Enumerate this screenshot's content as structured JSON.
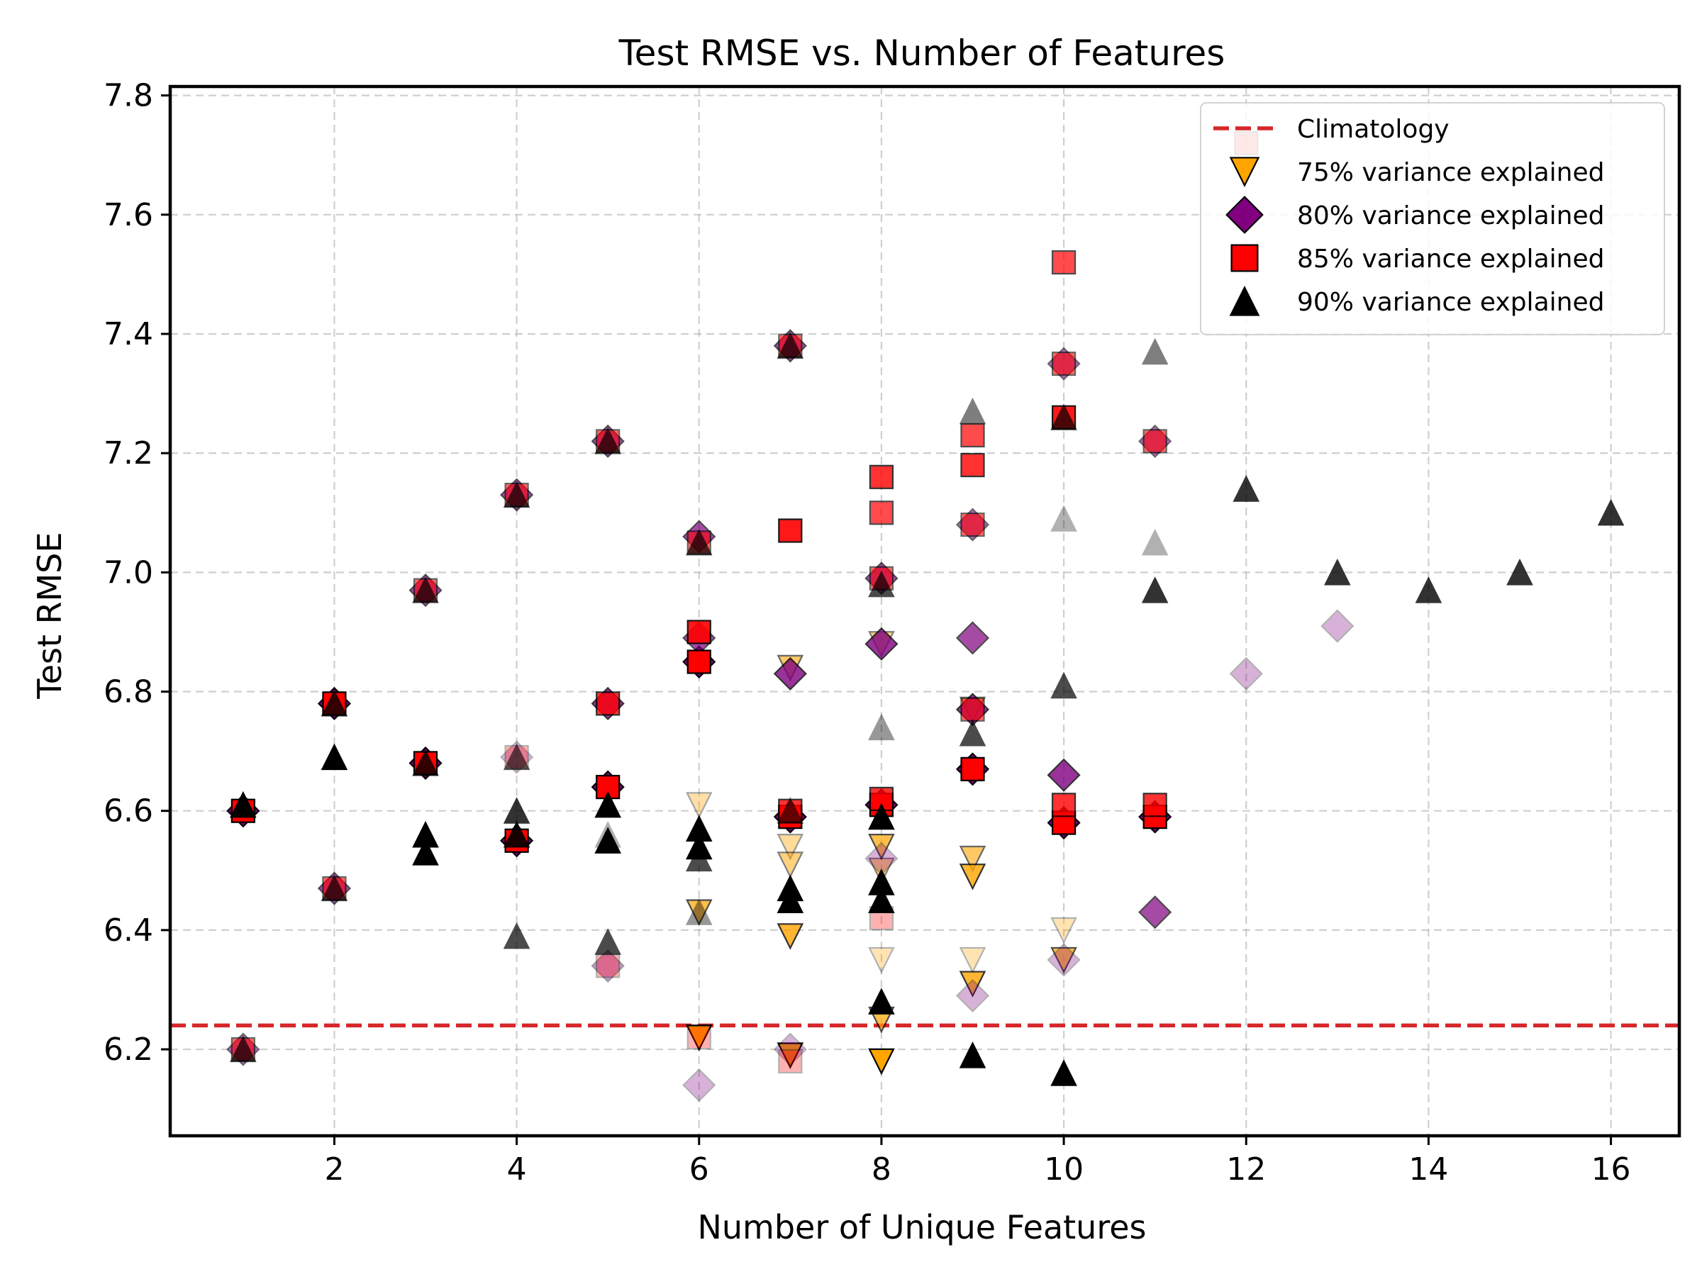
{
  "chart_data": {
    "type": "scatter",
    "title": "Test RMSE vs. Number of Features",
    "xlabel": "Number of Unique Features",
    "ylabel": "Test RMSE",
    "xlim": [
      0.2,
      16.75
    ],
    "ylim": [
      6.055,
      7.815
    ],
    "x_ticks": [
      2,
      4,
      6,
      8,
      10,
      12,
      14,
      16
    ],
    "y_ticks": [
      6.2,
      6.4,
      6.6,
      6.8,
      7.0,
      7.2,
      7.4,
      7.6,
      7.8
    ],
    "x_tick_labels": [
      "2",
      "4",
      "6",
      "8",
      "10",
      "12",
      "14",
      "16"
    ],
    "y_tick_labels": [
      "6.2",
      "6.4",
      "6.6",
      "6.8",
      "7.0",
      "7.2",
      "7.4",
      "7.6",
      "7.8"
    ],
    "grid": true,
    "legend_position": "top-right",
    "reference_line": {
      "name": "Climatology",
      "y": 6.24,
      "color": "#d62728",
      "style": "dashed"
    },
    "series": [
      {
        "name": "75% variance explained",
        "marker": "triangle-down",
        "color": "#ffa500",
        "points": [
          {
            "x": 6,
            "y": 6.61,
            "a": 0.35
          },
          {
            "x": 6,
            "y": 6.43,
            "a": 0.7
          },
          {
            "x": 6,
            "y": 6.22,
            "a": 1.0
          },
          {
            "x": 7,
            "y": 6.54,
            "a": 0.4
          },
          {
            "x": 7,
            "y": 6.51,
            "a": 0.5
          },
          {
            "x": 7,
            "y": 6.39,
            "a": 0.8
          },
          {
            "x": 7,
            "y": 6.19,
            "a": 1.0
          },
          {
            "x": 7,
            "y": 6.84,
            "a": 0.6
          },
          {
            "x": 8,
            "y": 6.54,
            "a": 0.7
          },
          {
            "x": 8,
            "y": 6.5,
            "a": 0.5
          },
          {
            "x": 8,
            "y": 6.35,
            "a": 0.3
          },
          {
            "x": 8,
            "y": 6.25,
            "a": 0.7
          },
          {
            "x": 8,
            "y": 6.18,
            "a": 1.0
          },
          {
            "x": 8,
            "y": 6.88,
            "a": 0.5
          },
          {
            "x": 9,
            "y": 6.52,
            "a": 0.6
          },
          {
            "x": 9,
            "y": 6.49,
            "a": 0.8
          },
          {
            "x": 9,
            "y": 6.35,
            "a": 0.3
          },
          {
            "x": 9,
            "y": 6.31,
            "a": 0.8
          },
          {
            "x": 9,
            "y": 6.77,
            "a": 0.5
          },
          {
            "x": 10,
            "y": 6.4,
            "a": 0.3
          },
          {
            "x": 10,
            "y": 6.35,
            "a": 0.7
          }
        ]
      },
      {
        "name": "80% variance explained",
        "marker": "diamond",
        "color": "#800080",
        "points": [
          {
            "x": 1,
            "y": 6.6,
            "a": 1.0
          },
          {
            "x": 1,
            "y": 6.2,
            "a": 0.6
          },
          {
            "x": 2,
            "y": 6.78,
            "a": 1.0
          },
          {
            "x": 2,
            "y": 6.47,
            "a": 0.7
          },
          {
            "x": 3,
            "y": 6.68,
            "a": 1.0
          },
          {
            "x": 3,
            "y": 6.97,
            "a": 0.7
          },
          {
            "x": 4,
            "y": 6.55,
            "a": 1.0
          },
          {
            "x": 4,
            "y": 7.13,
            "a": 0.7
          },
          {
            "x": 4,
            "y": 6.69,
            "a": 0.3
          },
          {
            "x": 5,
            "y": 6.64,
            "a": 1.0
          },
          {
            "x": 5,
            "y": 6.78,
            "a": 0.8
          },
          {
            "x": 5,
            "y": 7.22,
            "a": 0.7
          },
          {
            "x": 5,
            "y": 6.34,
            "a": 0.4
          },
          {
            "x": 6,
            "y": 6.85,
            "a": 1.0
          },
          {
            "x": 6,
            "y": 6.89,
            "a": 0.7
          },
          {
            "x": 6,
            "y": 7.06,
            "a": 0.7
          },
          {
            "x": 6,
            "y": 6.14,
            "a": 0.3
          },
          {
            "x": 7,
            "y": 6.59,
            "a": 1.0
          },
          {
            "x": 7,
            "y": 6.83,
            "a": 0.8
          },
          {
            "x": 7,
            "y": 7.38,
            "a": 0.7
          },
          {
            "x": 7,
            "y": 6.2,
            "a": 0.3
          },
          {
            "x": 8,
            "y": 6.61,
            "a": 1.0
          },
          {
            "x": 8,
            "y": 6.88,
            "a": 0.8
          },
          {
            "x": 8,
            "y": 6.99,
            "a": 0.7
          },
          {
            "x": 8,
            "y": 6.52,
            "a": 0.3
          },
          {
            "x": 9,
            "y": 6.67,
            "a": 1.0
          },
          {
            "x": 9,
            "y": 6.77,
            "a": 0.8
          },
          {
            "x": 9,
            "y": 6.89,
            "a": 0.7
          },
          {
            "x": 9,
            "y": 7.08,
            "a": 0.6
          },
          {
            "x": 9,
            "y": 6.29,
            "a": 0.3
          },
          {
            "x": 10,
            "y": 6.58,
            "a": 1.0
          },
          {
            "x": 10,
            "y": 6.66,
            "a": 0.8
          },
          {
            "x": 10,
            "y": 7.35,
            "a": 0.6
          },
          {
            "x": 10,
            "y": 6.35,
            "a": 0.3
          },
          {
            "x": 11,
            "y": 6.59,
            "a": 1.0
          },
          {
            "x": 11,
            "y": 6.43,
            "a": 0.7
          },
          {
            "x": 11,
            "y": 7.22,
            "a": 0.6
          },
          {
            "x": 12,
            "y": 6.83,
            "a": 0.3
          },
          {
            "x": 13,
            "y": 6.91,
            "a": 0.3
          }
        ]
      },
      {
        "name": "85% variance explained",
        "marker": "square",
        "color": "#ff0000",
        "points": [
          {
            "x": 1,
            "y": 6.6,
            "a": 1.0
          },
          {
            "x": 1,
            "y": 6.2,
            "a": 0.6
          },
          {
            "x": 2,
            "y": 6.78,
            "a": 1.0
          },
          {
            "x": 2,
            "y": 6.47,
            "a": 0.6
          },
          {
            "x": 3,
            "y": 6.68,
            "a": 1.0
          },
          {
            "x": 3,
            "y": 6.97,
            "a": 0.6
          },
          {
            "x": 4,
            "y": 6.55,
            "a": 1.0
          },
          {
            "x": 4,
            "y": 7.13,
            "a": 0.6
          },
          {
            "x": 4,
            "y": 6.69,
            "a": 0.3
          },
          {
            "x": 5,
            "y": 6.64,
            "a": 1.0
          },
          {
            "x": 5,
            "y": 6.78,
            "a": 0.8
          },
          {
            "x": 5,
            "y": 7.22,
            "a": 0.6
          },
          {
            "x": 5,
            "y": 6.34,
            "a": 0.3
          },
          {
            "x": 6,
            "y": 6.85,
            "a": 1.0
          },
          {
            "x": 6,
            "y": 6.9,
            "a": 0.9
          },
          {
            "x": 6,
            "y": 7.05,
            "a": 0.6
          },
          {
            "x": 6,
            "y": 6.22,
            "a": 0.3
          },
          {
            "x": 7,
            "y": 6.59,
            "a": 1.0
          },
          {
            "x": 7,
            "y": 6.6,
            "a": 0.8
          },
          {
            "x": 7,
            "y": 7.07,
            "a": 0.9
          },
          {
            "x": 7,
            "y": 7.38,
            "a": 0.6
          },
          {
            "x": 7,
            "y": 6.18,
            "a": 0.3
          },
          {
            "x": 8,
            "y": 6.61,
            "a": 1.0
          },
          {
            "x": 8,
            "y": 6.62,
            "a": 0.8
          },
          {
            "x": 8,
            "y": 6.99,
            "a": 0.6
          },
          {
            "x": 8,
            "y": 7.1,
            "a": 0.7
          },
          {
            "x": 8,
            "y": 7.16,
            "a": 0.8
          },
          {
            "x": 8,
            "y": 6.42,
            "a": 0.3
          },
          {
            "x": 9,
            "y": 6.67,
            "a": 1.0
          },
          {
            "x": 9,
            "y": 6.77,
            "a": 0.6
          },
          {
            "x": 9,
            "y": 7.08,
            "a": 0.6
          },
          {
            "x": 9,
            "y": 7.18,
            "a": 0.8
          },
          {
            "x": 9,
            "y": 7.23,
            "a": 0.7
          },
          {
            "x": 10,
            "y": 6.58,
            "a": 1.0
          },
          {
            "x": 10,
            "y": 6.61,
            "a": 0.8
          },
          {
            "x": 10,
            "y": 7.26,
            "a": 0.9
          },
          {
            "x": 10,
            "y": 7.35,
            "a": 0.6
          },
          {
            "x": 10,
            "y": 7.52,
            "a": 0.7
          },
          {
            "x": 11,
            "y": 6.59,
            "a": 1.0
          },
          {
            "x": 11,
            "y": 6.61,
            "a": 0.8
          },
          {
            "x": 11,
            "y": 7.22,
            "a": 0.6
          },
          {
            "x": 12,
            "y": 7.72,
            "a": 0.6
          }
        ]
      },
      {
        "name": "90% variance explained",
        "marker": "triangle-up",
        "color": "#000000",
        "points": [
          {
            "x": 1,
            "y": 6.61,
            "a": 1.0
          },
          {
            "x": 1,
            "y": 6.2,
            "a": 0.7
          },
          {
            "x": 2,
            "y": 6.69,
            "a": 1.0
          },
          {
            "x": 2,
            "y": 6.78,
            "a": 0.8
          },
          {
            "x": 2,
            "y": 6.47,
            "a": 0.7
          },
          {
            "x": 3,
            "y": 6.56,
            "a": 1.0
          },
          {
            "x": 3,
            "y": 6.53,
            "a": 1.0
          },
          {
            "x": 3,
            "y": 6.68,
            "a": 0.8
          },
          {
            "x": 3,
            "y": 6.97,
            "a": 0.7
          },
          {
            "x": 4,
            "y": 6.6,
            "a": 0.8
          },
          {
            "x": 4,
            "y": 6.56,
            "a": 0.9
          },
          {
            "x": 4,
            "y": 6.39,
            "a": 0.7
          },
          {
            "x": 4,
            "y": 6.69,
            "a": 0.6
          },
          {
            "x": 4,
            "y": 7.13,
            "a": 0.7
          },
          {
            "x": 5,
            "y": 6.61,
            "a": 1.0
          },
          {
            "x": 5,
            "y": 6.55,
            "a": 1.0
          },
          {
            "x": 5,
            "y": 6.56,
            "a": 0.3
          },
          {
            "x": 5,
            "y": 6.38,
            "a": 0.7
          },
          {
            "x": 5,
            "y": 7.22,
            "a": 0.7
          },
          {
            "x": 6,
            "y": 6.57,
            "a": 1.0
          },
          {
            "x": 6,
            "y": 6.54,
            "a": 1.0
          },
          {
            "x": 6,
            "y": 6.52,
            "a": 0.7
          },
          {
            "x": 6,
            "y": 6.43,
            "a": 0.4
          },
          {
            "x": 6,
            "y": 7.05,
            "a": 0.7
          },
          {
            "x": 7,
            "y": 6.47,
            "a": 1.0
          },
          {
            "x": 7,
            "y": 6.45,
            "a": 1.0
          },
          {
            "x": 7,
            "y": 6.6,
            "a": 0.6
          },
          {
            "x": 7,
            "y": 7.38,
            "a": 0.7
          },
          {
            "x": 8,
            "y": 6.48,
            "a": 1.0
          },
          {
            "x": 8,
            "y": 6.45,
            "a": 1.0
          },
          {
            "x": 8,
            "y": 6.59,
            "a": 1.0
          },
          {
            "x": 8,
            "y": 6.74,
            "a": 0.4
          },
          {
            "x": 8,
            "y": 6.98,
            "a": 0.7
          },
          {
            "x": 8,
            "y": 6.28,
            "a": 1.0
          },
          {
            "x": 9,
            "y": 6.73,
            "a": 0.7
          },
          {
            "x": 9,
            "y": 7.27,
            "a": 0.5
          },
          {
            "x": 9,
            "y": 6.19,
            "a": 1.0
          },
          {
            "x": 10,
            "y": 6.81,
            "a": 0.7
          },
          {
            "x": 10,
            "y": 7.09,
            "a": 0.3
          },
          {
            "x": 10,
            "y": 7.26,
            "a": 0.7
          },
          {
            "x": 10,
            "y": 6.16,
            "a": 1.0
          },
          {
            "x": 11,
            "y": 6.97,
            "a": 0.8
          },
          {
            "x": 11,
            "y": 7.05,
            "a": 0.3
          },
          {
            "x": 11,
            "y": 7.37,
            "a": 0.5
          },
          {
            "x": 12,
            "y": 7.14,
            "a": 0.8
          },
          {
            "x": 13,
            "y": 7.0,
            "a": 0.8
          },
          {
            "x": 14,
            "y": 6.97,
            "a": 0.8
          },
          {
            "x": 15,
            "y": 7.0,
            "a": 0.8
          },
          {
            "x": 16,
            "y": 7.1,
            "a": 0.8
          }
        ]
      }
    ]
  }
}
